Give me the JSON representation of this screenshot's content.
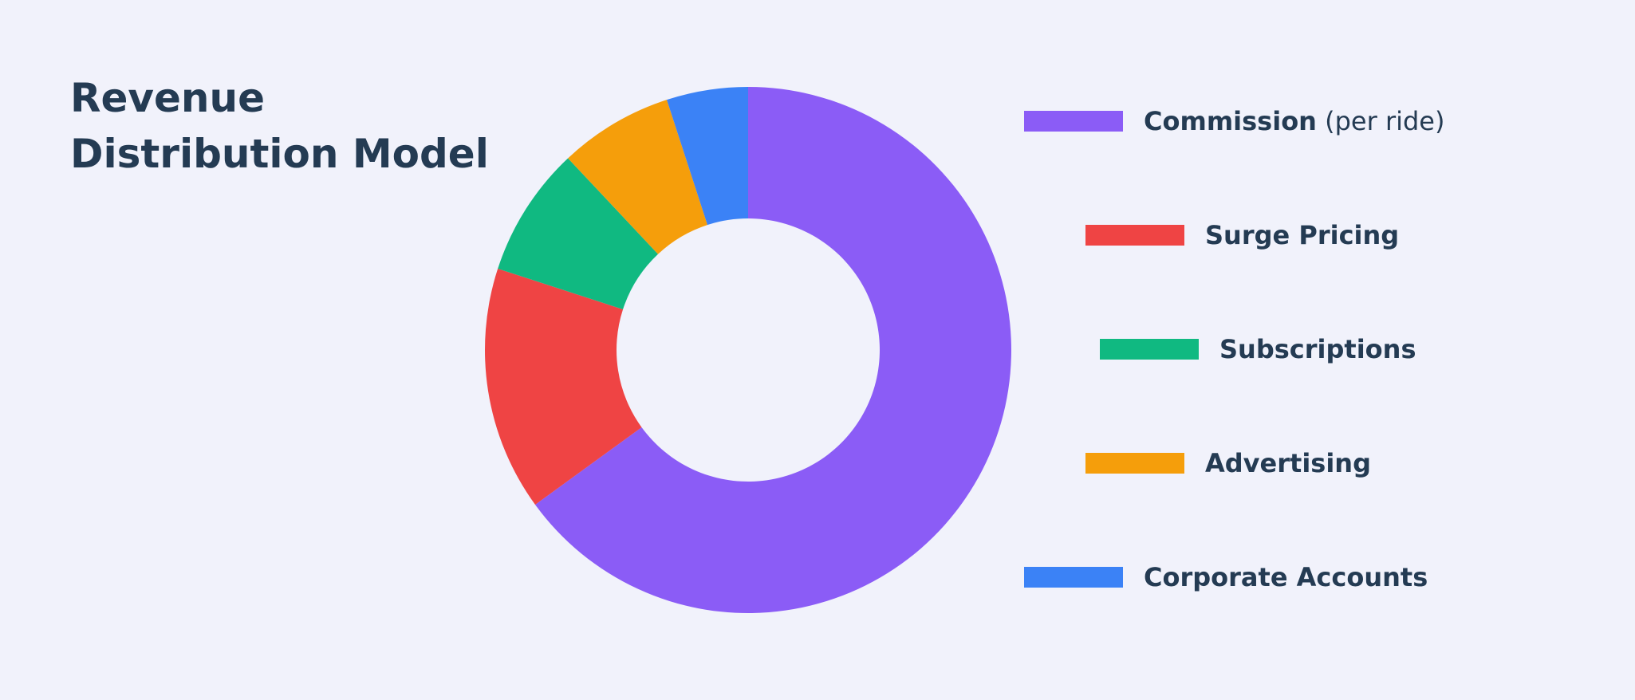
{
  "title": "Revenue Distribution Model",
  "chart_data": {
    "type": "pie",
    "donut": true,
    "title": "Revenue Distribution Model",
    "legend_position": "right",
    "categories": [
      "Commission",
      "Surge Pricing",
      "Subscriptions",
      "Advertising",
      "Corporate Accounts"
    ],
    "values": [
      65,
      15,
      8,
      7,
      5
    ],
    "colors": [
      "#8b5cf6",
      "#ef4444",
      "#10b981",
      "#f59e0b",
      "#3b82f6"
    ],
    "legend": [
      {
        "label": "Commission",
        "suffix": "(per ride)",
        "color": "#8b5cf6"
      },
      {
        "label": "Surge Pricing",
        "suffix": "",
        "color": "#ef4444"
      },
      {
        "label": "Subscriptions",
        "suffix": "",
        "color": "#10b981"
      },
      {
        "label": "Advertising",
        "suffix": "",
        "color": "#f59e0b"
      },
      {
        "label": "Corporate Accounts",
        "suffix": "",
        "color": "#3b82f6"
      }
    ]
  }
}
